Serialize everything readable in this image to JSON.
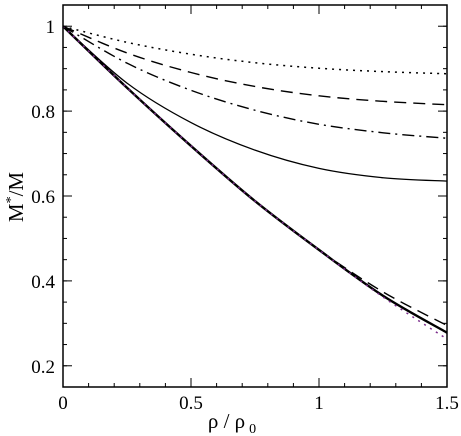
{
  "chart_data": {
    "type": "line",
    "xlabel": "ρ / ρ",
    "xlabel_sub": "0",
    "ylabel": "M",
    "ylabel_sup": "*",
    "ylabel_tail": "/M",
    "xlim": [
      0,
      1.5
    ],
    "ylim": [
      0.15,
      1.05
    ],
    "x_ticks": [
      0,
      0.5,
      1,
      1.5
    ],
    "x_tick_labels": [
      "0",
      "0.5",
      "1",
      "1.5"
    ],
    "y_ticks": [
      0.2,
      0.4,
      0.6,
      0.8,
      1.0
    ],
    "y_tick_labels": [
      "0.2",
      "0.4",
      "0.6",
      "0.8",
      "1"
    ],
    "grid": false,
    "legend": "none",
    "x": [
      0,
      0.25,
      0.5,
      0.75,
      1.0,
      1.25,
      1.5
    ],
    "series": [
      {
        "style": "dotted",
        "color": "#000000",
        "values": [
          1.0,
          0.962,
          0.934,
          0.914,
          0.901,
          0.893,
          0.888
        ]
      },
      {
        "style": "dashed",
        "color": "#000000",
        "values": [
          1.0,
          0.937,
          0.891,
          0.858,
          0.836,
          0.823,
          0.815
        ]
      },
      {
        "style": "dashdot",
        "color": "#000000",
        "values": [
          1.0,
          0.913,
          0.849,
          0.802,
          0.769,
          0.749,
          0.736
        ]
      },
      {
        "style": "thin-solid",
        "color": "#000000",
        "values": [
          1.0,
          0.866,
          0.773,
          0.708,
          0.665,
          0.643,
          0.635
        ]
      },
      {
        "style": "thick-solid",
        "color": "#000000",
        "values": [
          1.0,
          0.855,
          0.718,
          0.588,
          0.473,
          0.365,
          0.278
        ]
      },
      {
        "style": "dashed",
        "color": "#000000",
        "values": [
          1.0,
          0.855,
          0.718,
          0.588,
          0.473,
          0.374,
          0.295
        ]
      },
      {
        "style": "dotted",
        "color": "#7a2a8a",
        "values": [
          1.0,
          0.855,
          0.718,
          0.588,
          0.473,
          0.362,
          0.263
        ]
      }
    ]
  }
}
